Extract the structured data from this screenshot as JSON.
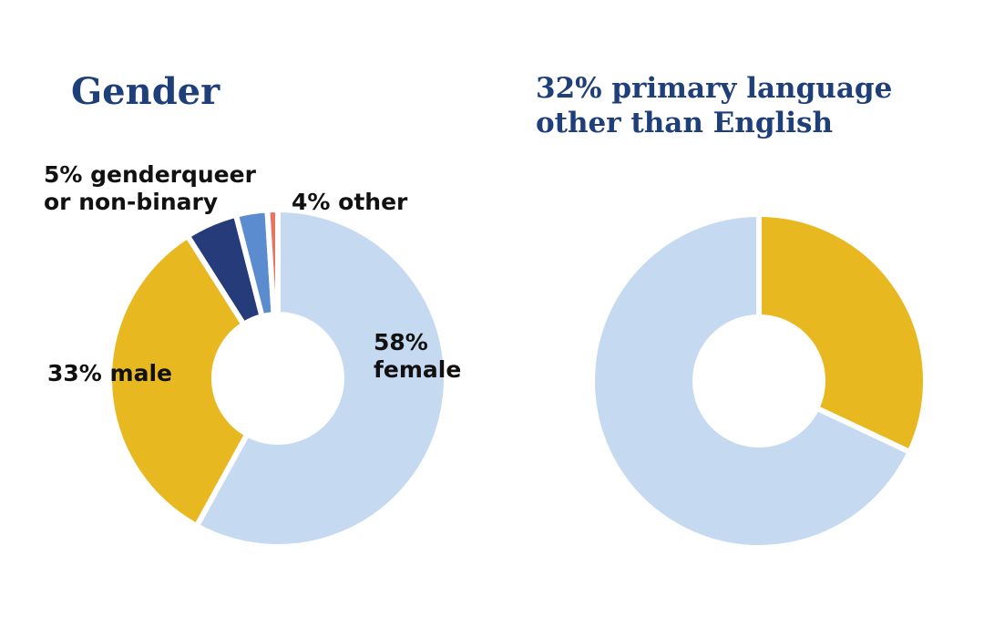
{
  "chart_data": [
    {
      "type": "donut",
      "title": "Gender",
      "values": [
        58,
        33,
        5,
        3,
        1
      ],
      "value_labels": [
        "58%\nfemale",
        "33% male",
        "5% genderqueer\nor non-binary",
        null,
        null
      ],
      "colors": [
        "#c5d9f1",
        "#e8b820",
        "#253b7a",
        "#5b8ccf",
        "#e8735f"
      ],
      "annotation": "4% other"
    },
    {
      "type": "donut",
      "title": "32% primary language\nother than English",
      "values": [
        32,
        68
      ],
      "colors": [
        "#e8b820",
        "#c5d9f1"
      ]
    }
  ]
}
